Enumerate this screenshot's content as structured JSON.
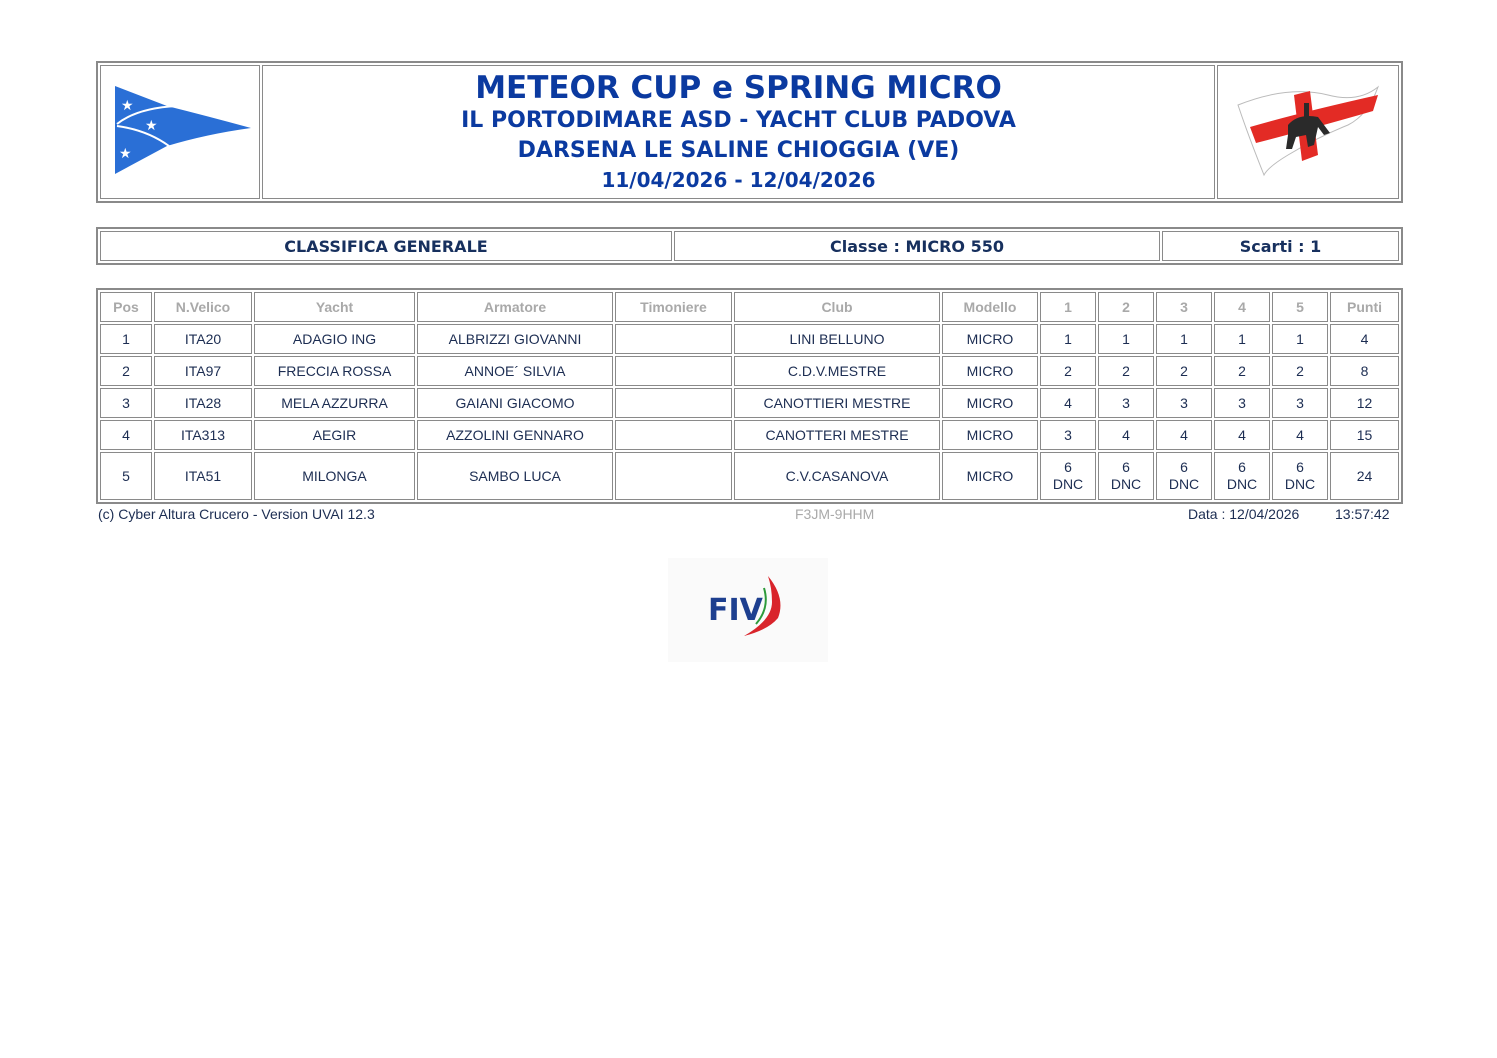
{
  "header": {
    "title": "METEOR CUP e SPRING MICRO",
    "organizers": "IL PORTODIMARE ASD - YACHT CLUB PADOVA",
    "venue": "DARSENA LE SALINE CHIOGGIA (VE)",
    "dates": "11/04/2026 - 12/04/2026",
    "left_logo": "blue-burgee-stars-logo",
    "right_logo": "red-cross-flag-horseman-logo"
  },
  "class_bar": {
    "ranking": "CLASSIFICA GENERALE",
    "class": "Classe : MICRO 550",
    "discards": "Scarti : 1"
  },
  "table": {
    "columns": [
      "Pos",
      "N.Velico",
      "Yacht",
      "Armatore",
      "Timoniere",
      "Club",
      "Modello",
      "1",
      "2",
      "3",
      "4",
      "5",
      "Punti"
    ],
    "rows": [
      {
        "pos": "1",
        "sail": "ITA20",
        "yacht": "ADAGIO ING",
        "owner": "ALBRIZZI GIOVANNI",
        "helm": "",
        "club": "LINI BELLUNO",
        "model": "MICRO",
        "races": [
          "1",
          "1",
          "1",
          "1",
          "1"
        ],
        "codes": [
          "",
          "",
          "",
          "",
          ""
        ],
        "points": "4"
      },
      {
        "pos": "2",
        "sail": "ITA97",
        "yacht": "FRECCIA ROSSA",
        "owner": "ANNOE´ SILVIA",
        "helm": "",
        "club": "C.D.V.MESTRE",
        "model": "MICRO",
        "races": [
          "2",
          "2",
          "2",
          "2",
          "2"
        ],
        "codes": [
          "",
          "",
          "",
          "",
          ""
        ],
        "points": "8"
      },
      {
        "pos": "3",
        "sail": "ITA28",
        "yacht": "MELA AZZURRA",
        "owner": "GAIANI GIACOMO",
        "helm": "",
        "club": "CANOTTIERI MESTRE",
        "model": "MICRO",
        "races": [
          "4",
          "3",
          "3",
          "3",
          "3"
        ],
        "codes": [
          "",
          "",
          "",
          "",
          ""
        ],
        "points": "12"
      },
      {
        "pos": "4",
        "sail": "ITA313",
        "yacht": "AEGIR",
        "owner": "AZZOLINI GENNARO",
        "helm": "",
        "club": "CANOTTERI MESTRE",
        "model": "MICRO",
        "races": [
          "3",
          "4",
          "4",
          "4",
          "4"
        ],
        "codes": [
          "",
          "",
          "",
          "",
          ""
        ],
        "points": "15"
      },
      {
        "pos": "5",
        "sail": "ITA51",
        "yacht": "MILONGA",
        "owner": "SAMBO LUCA",
        "helm": "",
        "club": "C.V.CASANOVA",
        "model": "MICRO",
        "races": [
          "6",
          "6",
          "6",
          "6",
          "6"
        ],
        "codes": [
          "DNC",
          "DNC",
          "DNC",
          "DNC",
          "DNC"
        ],
        "points": "24"
      }
    ]
  },
  "footer": {
    "credits": "(c) Cyber Altura Crucero -   Version UVAI 12.3",
    "code": "F3JM-9HHM",
    "date": "Data : 12/04/2026",
    "time": "13:57:42"
  },
  "bottom_logo": {
    "text": "FIV",
    "name": "fiv-logo"
  },
  "colors": {
    "title_blue": "#0b3aa0",
    "text_navy": "#1c2d52",
    "header_gray": "#a9a9a9",
    "border": "#8a8a8a"
  }
}
